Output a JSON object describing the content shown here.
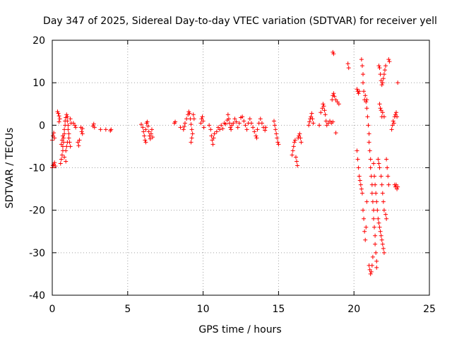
{
  "chart_data": {
    "type": "scatter",
    "title": "Day 347 of 2025, Sidereal Day-to-day VTEC variation (SDTVAR) for receiver yell",
    "xlabel": "GPS time / hours",
    "ylabel": "SDTVAR / TECUs",
    "xlim": [
      0,
      25
    ],
    "ylim": [
      -40,
      20
    ],
    "xticks": [
      0,
      5,
      10,
      15,
      20,
      25
    ],
    "yticks": [
      -40,
      -30,
      -20,
      -10,
      0,
      10,
      20
    ],
    "xtick_labels": [
      "0",
      "5",
      "10",
      "15",
      "20",
      "25"
    ],
    "ytick_labels": [
      "-40",
      "-30",
      "-20",
      "-10",
      "0",
      "10",
      "20"
    ],
    "grid": true,
    "marker": "plus",
    "color": "#ff0000",
    "series": [
      {
        "name": "SDTVAR",
        "points": [
          [
            0.0,
            -10.0
          ],
          [
            0.05,
            -9.5
          ],
          [
            0.1,
            -9.2
          ],
          [
            0.15,
            -8.8
          ],
          [
            0.2,
            -9.6
          ],
          [
            0.0,
            -3.5
          ],
          [
            0.05,
            -2.5
          ],
          [
            0.1,
            -1.8
          ],
          [
            0.15,
            -3.0
          ],
          [
            0.35,
            3.2
          ],
          [
            0.4,
            2.8
          ],
          [
            0.45,
            2.2
          ],
          [
            0.5,
            1.5
          ],
          [
            0.45,
            0.8
          ],
          [
            0.55,
            -9.0
          ],
          [
            0.6,
            -8.0
          ],
          [
            0.65,
            -7.0
          ],
          [
            0.7,
            -6.0
          ],
          [
            0.7,
            -5.0
          ],
          [
            0.75,
            -4.0
          ],
          [
            0.75,
            -3.0
          ],
          [
            0.8,
            -2.0
          ],
          [
            0.8,
            -1.0
          ],
          [
            0.85,
            0.0
          ],
          [
            0.85,
            1.0
          ],
          [
            0.9,
            1.8
          ],
          [
            0.95,
            2.5
          ],
          [
            1.0,
            2.0
          ],
          [
            1.0,
            1.0
          ],
          [
            1.05,
            0.0
          ],
          [
            1.05,
            -1.0
          ],
          [
            1.1,
            -2.0
          ],
          [
            1.1,
            -3.0
          ],
          [
            1.15,
            -4.0
          ],
          [
            1.2,
            -5.0
          ],
          [
            0.6,
            -4.5
          ],
          [
            0.65,
            -3.5
          ],
          [
            0.7,
            -2.5
          ],
          [
            0.9,
            -6.0
          ],
          [
            0.95,
            -5.0
          ],
          [
            1.0,
            -4.0
          ],
          [
            1.2,
            1.5
          ],
          [
            1.25,
            0.5
          ],
          [
            0.8,
            -7.5
          ],
          [
            0.9,
            -8.5
          ],
          [
            1.4,
            0.5
          ],
          [
            1.5,
            0.0
          ],
          [
            1.55,
            -0.5
          ],
          [
            1.7,
            -4.0
          ],
          [
            1.75,
            -4.8
          ],
          [
            1.8,
            -3.5
          ],
          [
            1.9,
            -0.5
          ],
          [
            1.95,
            -1.5
          ],
          [
            2.0,
            -2.0
          ],
          [
            2.0,
            -0.8
          ],
          [
            2.7,
            -0.2
          ],
          [
            2.75,
            0.3
          ],
          [
            2.8,
            -0.5
          ],
          [
            3.2,
            -1.0
          ],
          [
            3.55,
            -1.0
          ],
          [
            3.85,
            -1.3
          ],
          [
            3.9,
            -1.0
          ],
          [
            5.9,
            0.2
          ],
          [
            6.0,
            -0.5
          ],
          [
            6.05,
            -1.5
          ],
          [
            6.1,
            -2.5
          ],
          [
            6.15,
            -3.5
          ],
          [
            6.2,
            -4.0
          ],
          [
            6.2,
            -1.0
          ],
          [
            6.25,
            0.5
          ],
          [
            6.3,
            0.8
          ],
          [
            6.35,
            -0.2
          ],
          [
            6.4,
            -1.5
          ],
          [
            6.45,
            -2.5
          ],
          [
            6.5,
            -3.2
          ],
          [
            6.55,
            -2.0
          ],
          [
            6.6,
            -1.0
          ],
          [
            6.65,
            -2.8
          ],
          [
            8.1,
            0.5
          ],
          [
            8.15,
            0.8
          ],
          [
            8.5,
            -0.5
          ],
          [
            8.7,
            -1.0
          ],
          [
            8.75,
            -0.3
          ],
          [
            8.8,
            0.5
          ],
          [
            8.9,
            1.5
          ],
          [
            9.0,
            2.5
          ],
          [
            9.05,
            3.2
          ],
          [
            9.1,
            2.8
          ],
          [
            9.15,
            1.5
          ],
          [
            9.2,
            0.2
          ],
          [
            9.25,
            -1.0
          ],
          [
            9.3,
            -2.0
          ],
          [
            9.35,
            2.5
          ],
          [
            9.4,
            1.5
          ],
          [
            9.2,
            -4.0
          ],
          [
            9.25,
            -3.0
          ],
          [
            9.85,
            0.5
          ],
          [
            9.9,
            1.5
          ],
          [
            9.95,
            2.0
          ],
          [
            10.0,
            1.0
          ],
          [
            10.05,
            -0.5
          ],
          [
            10.4,
            0.0
          ],
          [
            10.5,
            -1.0
          ],
          [
            10.55,
            -2.5
          ],
          [
            10.6,
            -3.5
          ],
          [
            10.65,
            -4.5
          ],
          [
            10.7,
            -3.0
          ],
          [
            10.75,
            -2.0
          ],
          [
            10.9,
            -1.5
          ],
          [
            11.0,
            -0.5
          ],
          [
            11.1,
            -1.0
          ],
          [
            11.2,
            0.0
          ],
          [
            11.3,
            -0.8
          ],
          [
            11.4,
            0.5
          ],
          [
            11.5,
            0.3
          ],
          [
            11.6,
            1.2
          ],
          [
            11.65,
            2.5
          ],
          [
            11.7,
            1.5
          ],
          [
            11.75,
            0.5
          ],
          [
            11.8,
            -0.5
          ],
          [
            11.85,
            -1.0
          ],
          [
            11.9,
            0.0
          ],
          [
            12.0,
            0.5
          ],
          [
            12.1,
            1.5
          ],
          [
            12.2,
            0.8
          ],
          [
            12.3,
            -0.5
          ],
          [
            12.4,
            0.5
          ],
          [
            12.5,
            1.8
          ],
          [
            12.6,
            2.0
          ],
          [
            12.7,
            1.0
          ],
          [
            12.8,
            0.0
          ],
          [
            12.9,
            -1.0
          ],
          [
            13.0,
            0.5
          ],
          [
            13.1,
            1.5
          ],
          [
            13.2,
            0.5
          ],
          [
            13.3,
            -0.5
          ],
          [
            13.4,
            -1.5
          ],
          [
            13.5,
            -2.5
          ],
          [
            13.55,
            -3.0
          ],
          [
            13.6,
            -1.0
          ],
          [
            13.7,
            0.5
          ],
          [
            13.8,
            1.5
          ],
          [
            13.9,
            0.5
          ],
          [
            14.0,
            -0.5
          ],
          [
            14.1,
            -1.2
          ],
          [
            14.15,
            -0.5
          ],
          [
            14.7,
            1.0
          ],
          [
            14.75,
            0.0
          ],
          [
            14.8,
            -1.0
          ],
          [
            14.85,
            -2.0
          ],
          [
            14.9,
            -3.0
          ],
          [
            14.95,
            -4.0
          ],
          [
            15.0,
            -4.5
          ],
          [
            15.9,
            -7.0
          ],
          [
            15.95,
            -6.0
          ],
          [
            16.0,
            -5.0
          ],
          [
            16.05,
            -4.0
          ],
          [
            16.1,
            -3.5
          ],
          [
            16.15,
            -7.5
          ],
          [
            16.2,
            -8.5
          ],
          [
            16.25,
            -9.5
          ],
          [
            16.3,
            -3.0
          ],
          [
            16.35,
            -2.5
          ],
          [
            16.4,
            -2.0
          ],
          [
            16.45,
            -3.0
          ],
          [
            16.5,
            -4.0
          ],
          [
            17.0,
            0.0
          ],
          [
            17.05,
            0.8
          ],
          [
            17.1,
            1.5
          ],
          [
            17.15,
            2.0
          ],
          [
            17.2,
            2.8
          ],
          [
            17.25,
            1.5
          ],
          [
            17.3,
            0.5
          ],
          [
            17.7,
            0.0
          ],
          [
            17.8,
            3.0
          ],
          [
            17.9,
            4.0
          ],
          [
            17.95,
            5.0
          ],
          [
            18.0,
            4.5
          ],
          [
            18.05,
            3.5
          ],
          [
            18.1,
            2.5
          ],
          [
            18.15,
            1.0
          ],
          [
            18.2,
            0.0
          ],
          [
            18.3,
            0.5
          ],
          [
            18.4,
            1.0
          ],
          [
            18.5,
            0.5
          ],
          [
            18.6,
            0.8
          ],
          [
            18.55,
            6.0
          ],
          [
            18.6,
            7.0
          ],
          [
            18.65,
            7.5
          ],
          [
            18.7,
            6.8
          ],
          [
            18.8,
            6.0
          ],
          [
            18.9,
            5.5
          ],
          [
            19.0,
            5.0
          ],
          [
            18.6,
            17.2
          ],
          [
            18.65,
            16.8
          ],
          [
            18.8,
            -1.8
          ],
          [
            19.6,
            14.5
          ],
          [
            19.65,
            13.5
          ],
          [
            20.2,
            8.5
          ],
          [
            20.25,
            8.0
          ],
          [
            20.3,
            7.5
          ],
          [
            20.35,
            8.0
          ],
          [
            20.2,
            -6.0
          ],
          [
            20.25,
            -8.0
          ],
          [
            20.3,
            -10.0
          ],
          [
            20.35,
            -12.0
          ],
          [
            20.4,
            -13.0
          ],
          [
            20.45,
            -14.0
          ],
          [
            20.5,
            -15.0
          ],
          [
            20.55,
            -16.0
          ],
          [
            20.5,
            15.5
          ],
          [
            20.55,
            14.0
          ],
          [
            20.6,
            12.0
          ],
          [
            20.6,
            10.0
          ],
          [
            20.65,
            8.0
          ],
          [
            20.7,
            6.0
          ],
          [
            20.75,
            7.0
          ],
          [
            20.8,
            5.5
          ],
          [
            20.85,
            4.0
          ],
          [
            20.85,
            6.0
          ],
          [
            20.9,
            2.0
          ],
          [
            20.95,
            0.0
          ],
          [
            21.0,
            -2.0
          ],
          [
            21.0,
            -4.0
          ],
          [
            21.05,
            -6.0
          ],
          [
            21.1,
            -8.0
          ],
          [
            21.1,
            -10.0
          ],
          [
            21.15,
            -12.0
          ],
          [
            21.2,
            -14.0
          ],
          [
            21.2,
            -16.0
          ],
          [
            21.25,
            -18.0
          ],
          [
            21.3,
            -20.0
          ],
          [
            21.3,
            -22.0
          ],
          [
            21.35,
            -24.0
          ],
          [
            21.4,
            -26.0
          ],
          [
            21.4,
            -28.0
          ],
          [
            21.45,
            -30.0
          ],
          [
            21.5,
            -32.0
          ],
          [
            21.5,
            -33.5
          ],
          [
            20.6,
            -20.0
          ],
          [
            20.65,
            -22.0
          ],
          [
            20.7,
            -25.0
          ],
          [
            20.75,
            -27.0
          ],
          [
            20.8,
            -24.0
          ],
          [
            20.85,
            -18.0
          ],
          [
            21.0,
            -33.0
          ],
          [
            21.05,
            -34.0
          ],
          [
            21.1,
            -35.0
          ],
          [
            21.15,
            -34.5
          ],
          [
            21.2,
            -33.0
          ],
          [
            21.25,
            -31.0
          ],
          [
            21.3,
            -9.0
          ],
          [
            21.35,
            -12.0
          ],
          [
            21.4,
            -14.0
          ],
          [
            21.45,
            -16.0
          ],
          [
            21.5,
            -18.0
          ],
          [
            21.55,
            -20.0
          ],
          [
            21.6,
            -22.0
          ],
          [
            21.65,
            -23.0
          ],
          [
            21.7,
            -24.0
          ],
          [
            21.75,
            -25.0
          ],
          [
            21.8,
            -26.0
          ],
          [
            21.85,
            -27.0
          ],
          [
            21.9,
            -28.0
          ],
          [
            21.95,
            -29.0
          ],
          [
            22.0,
            -30.0
          ],
          [
            21.6,
            -8.0
          ],
          [
            21.65,
            -9.0
          ],
          [
            21.7,
            -10.0
          ],
          [
            21.8,
            -12.0
          ],
          [
            21.85,
            -14.0
          ],
          [
            21.9,
            -16.0
          ],
          [
            21.95,
            -18.0
          ],
          [
            22.0,
            -20.0
          ],
          [
            22.1,
            -21.0
          ],
          [
            22.15,
            -22.0
          ],
          [
            21.65,
            14.0
          ],
          [
            21.7,
            13.5
          ],
          [
            21.75,
            12.0
          ],
          [
            21.8,
            10.5
          ],
          [
            21.85,
            9.5
          ],
          [
            21.9,
            10.0
          ],
          [
            21.95,
            11.0
          ],
          [
            22.0,
            12.0
          ],
          [
            22.05,
            13.0
          ],
          [
            22.1,
            14.0
          ],
          [
            21.7,
            5.0
          ],
          [
            21.75,
            4.0
          ],
          [
            21.8,
            3.5
          ],
          [
            21.85,
            2.0
          ],
          [
            21.9,
            3.0
          ],
          [
            22.0,
            2.0
          ],
          [
            22.15,
            -8.0
          ],
          [
            22.2,
            -10.0
          ],
          [
            22.25,
            -12.0
          ],
          [
            22.3,
            -14.0
          ],
          [
            22.3,
            15.5
          ],
          [
            22.35,
            15.0
          ],
          [
            22.5,
            -1.0
          ],
          [
            22.55,
            0.0
          ],
          [
            22.6,
            1.0
          ],
          [
            22.65,
            0.5
          ],
          [
            22.7,
            2.0
          ],
          [
            22.75,
            2.5
          ],
          [
            22.8,
            3.0
          ],
          [
            22.85,
            2.0
          ],
          [
            22.7,
            -14.0
          ],
          [
            22.75,
            -14.5
          ],
          [
            22.8,
            -14.0
          ],
          [
            22.85,
            -15.0
          ],
          [
            22.9,
            -14.5
          ],
          [
            22.9,
            10.0
          ]
        ]
      }
    ]
  }
}
